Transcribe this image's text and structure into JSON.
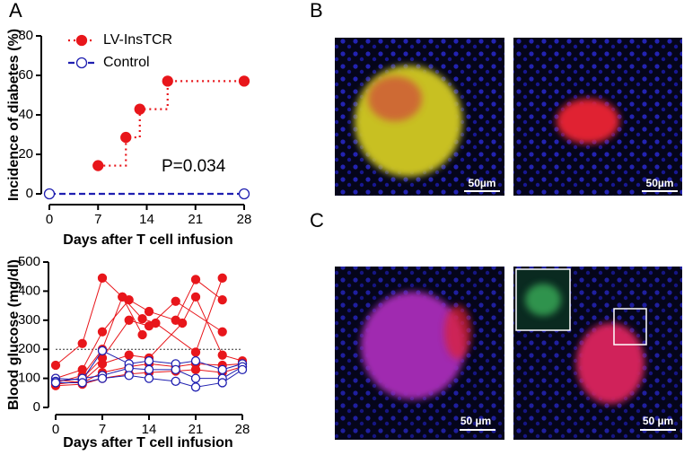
{
  "panels": [
    "A",
    "B",
    "C"
  ],
  "scale_bars": [
    "50µm",
    "50µm",
    "50 µm",
    "50 µm"
  ],
  "chart_data": [
    {
      "type": "line",
      "step": true,
      "ylabel": "Incidence of diabetes (%)",
      "xlabel": "Days after T cell infusion",
      "annotation": "P=0.034",
      "xlim": [
        0,
        28
      ],
      "xticks": [
        0,
        7,
        14,
        21,
        28
      ],
      "ylim": [
        0,
        80
      ],
      "yticks": [
        0,
        20,
        40,
        60,
        80
      ],
      "legend": "top-left",
      "series": [
        {
          "name": "LV-InsTCR",
          "color": "#e8161b",
          "linestyle": "dotted",
          "marker": "filled",
          "x": [
            7,
            11,
            13,
            17,
            28
          ],
          "values": [
            14.3,
            28.6,
            42.9,
            57.1,
            57.1
          ]
        },
        {
          "name": "Control",
          "color": "#1f1fb0",
          "linestyle": "dashed",
          "marker": "open",
          "x": [
            0,
            28
          ],
          "values": [
            0,
            0
          ]
        }
      ]
    },
    {
      "type": "line",
      "step": false,
      "ylabel": "Blood glucose (mg/dl)",
      "xlabel": "Days after T cell infusion",
      "xlim": [
        0,
        28
      ],
      "xticks": [
        0,
        7,
        14,
        21,
        28
      ],
      "ylim": [
        0,
        500
      ],
      "yticks": [
        0,
        100,
        200,
        300,
        400,
        500
      ],
      "hline": 200,
      "series": [
        {
          "color": "#e8161b",
          "linestyle": "solid",
          "marker": "filled",
          "x": [
            0,
            4,
            7,
            10,
            13
          ],
          "values": [
            145,
            220,
            445,
            380,
            250
          ]
        },
        {
          "color": "#e8161b",
          "linestyle": "solid",
          "marker": "filled",
          "x": [
            0,
            4,
            7,
            11,
            14,
            18,
            21,
            25
          ],
          "values": [
            100,
            130,
            260,
            370,
            330,
            300,
            440,
            370
          ]
        },
        {
          "color": "#e8161b",
          "linestyle": "solid",
          "marker": "filled",
          "x": [
            0,
            4,
            7,
            10,
            13,
            15,
            21,
            25
          ],
          "values": [
            85,
            110,
            200,
            380,
            305,
            290,
            190,
            445
          ]
        },
        {
          "color": "#e8161b",
          "linestyle": "solid",
          "marker": "filled",
          "x": [
            0,
            4,
            7,
            11,
            14,
            18,
            25
          ],
          "values": [
            90,
            100,
            170,
            300,
            280,
            365,
            260
          ]
        },
        {
          "color": "#e8161b",
          "linestyle": "solid",
          "marker": "filled",
          "x": [
            0,
            4,
            7,
            11,
            14,
            19,
            21,
            25,
            28
          ],
          "values": [
            80,
            90,
            150,
            180,
            170,
            290,
            380,
            180,
            160
          ]
        },
        {
          "color": "#e8161b",
          "linestyle": "solid",
          "marker": "filled",
          "x": [
            0,
            4,
            7,
            11,
            14,
            18,
            21,
            25,
            28
          ],
          "values": [
            95,
            85,
            120,
            140,
            150,
            140,
            150,
            145,
            150
          ]
        },
        {
          "color": "#e8161b",
          "linestyle": "solid",
          "marker": "filled",
          "x": [
            0,
            4,
            7,
            11,
            14,
            18,
            21,
            25,
            28
          ],
          "values": [
            75,
            80,
            100,
            115,
            120,
            125,
            130,
            120,
            140
          ]
        },
        {
          "color": "#1f1fb0",
          "linestyle": "solid",
          "marker": "open",
          "x": [
            0,
            4,
            7,
            11,
            14,
            18,
            21,
            25,
            28
          ],
          "values": [
            100,
            95,
            195,
            150,
            160,
            150,
            160,
            130,
            150
          ]
        },
        {
          "color": "#1f1fb0",
          "linestyle": "solid",
          "marker": "open",
          "x": [
            0,
            4,
            7,
            11,
            14,
            18,
            21,
            25,
            28
          ],
          "values": [
            90,
            100,
            110,
            135,
            130,
            130,
            100,
            100,
            140
          ]
        },
        {
          "color": "#1f1fb0",
          "linestyle": "solid",
          "marker": "open",
          "x": [
            0,
            4,
            7,
            11,
            14,
            18,
            21,
            25,
            28
          ],
          "values": [
            85,
            85,
            100,
            110,
            100,
            90,
            70,
            85,
            130
          ]
        }
      ]
    }
  ]
}
